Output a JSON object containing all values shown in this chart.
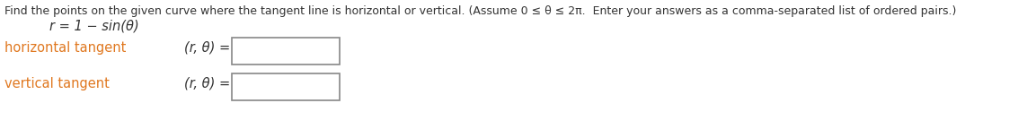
{
  "title_text": "Find the points on the given curve where the tangent line is horizontal or vertical. (Assume 0 ≤ θ ≤ 2π.  Enter your answers as a comma-separated list of ordered pairs.)",
  "equation": "r = 1 − sin(θ)",
  "label_horizontal": "horizontal tangent",
  "label_vertical": "vertical tangent",
  "rtheta": "(r, θ) =",
  "title_color": "#333333",
  "label_color": "#e07820",
  "equation_color": "#333333",
  "rtheta_color": "#333333",
  "bg_color": "#ffffff",
  "title_fontsize": 9.0,
  "label_fontsize": 10.5,
  "eq_fontsize": 10.5,
  "rtheta_fontsize": 10.5
}
